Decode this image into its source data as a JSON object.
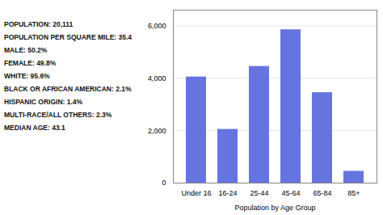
{
  "chart_data": {
    "type": "bar",
    "categories": [
      "Under 16",
      "16-24",
      "25-44",
      "45-64",
      "65-84",
      "85+"
    ],
    "values": [
      4050,
      2050,
      4450,
      5850,
      3450,
      450
    ],
    "color": "#6674e0",
    "xlabel": "Population by Age Group",
    "ylim": [
      0,
      6600
    ],
    "yticks": [
      0,
      {
        "value": 2000,
        "label": "2,000"
      },
      {
        "value": 4000,
        "label": "4,000"
      },
      {
        "value": 6000,
        "label": "6,000"
      }
    ],
    "grid": true,
    "annotations": [
      "POPULATION: 20,111",
      "POPULATION PER SQUARE MILE: 35.4",
      "MALE: 50.2%",
      "FEMALE: 49.8%",
      "WHITE: 95.6%",
      "BLACK OR AFRICAN AMERICAN: 2.1%",
      "HISPANIC ORIGIN: 1.4%",
      "MULTI-RACE/ALL OTHERS: 2.3%",
      "MEDIAN AGE: 43.1"
    ]
  }
}
